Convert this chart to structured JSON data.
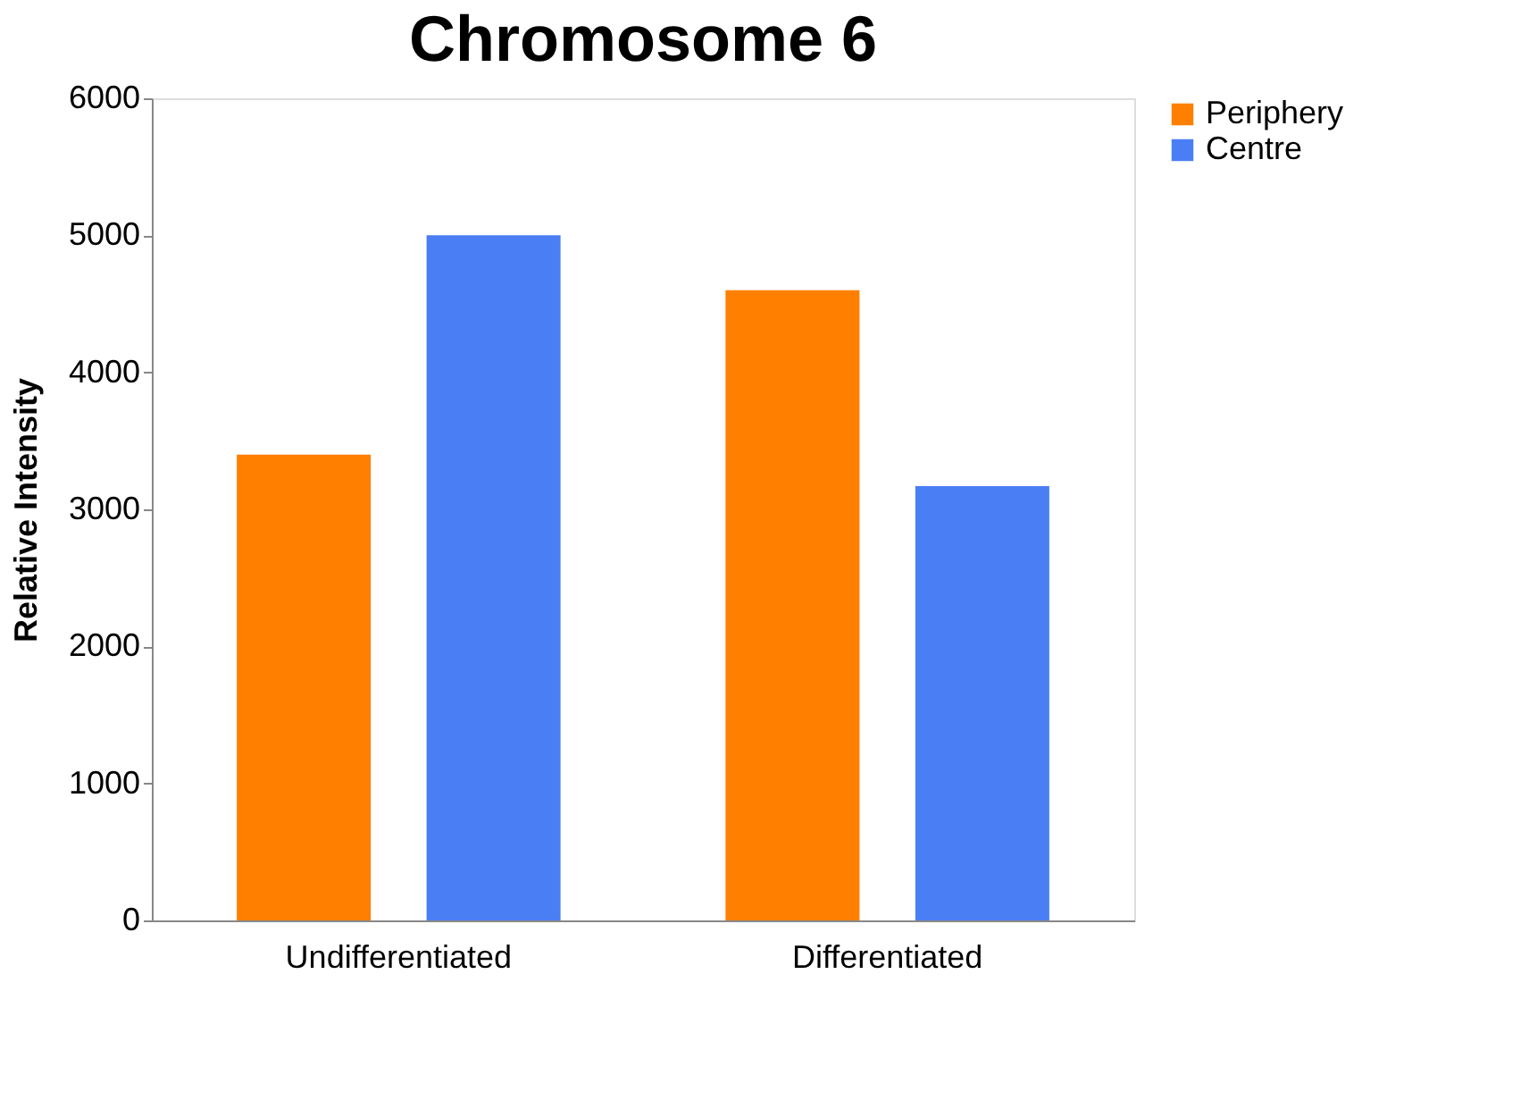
{
  "chart_data": {
    "type": "bar",
    "title": "Chromosome 6",
    "ylabel": "Relative Intensity",
    "categories": [
      "Undifferentiated",
      "Differentiated"
    ],
    "series": [
      {
        "name": "Periphery",
        "color": "#ff7f00",
        "values": [
          3400,
          4600
        ]
      },
      {
        "name": "Centre",
        "color": "#4a7ef5",
        "values": [
          5000,
          3170
        ]
      }
    ],
    "ylim": [
      0,
      6000
    ],
    "yticks": [
      0,
      1000,
      2000,
      3000,
      4000,
      5000,
      6000
    ],
    "grid": false,
    "legend": "right"
  }
}
